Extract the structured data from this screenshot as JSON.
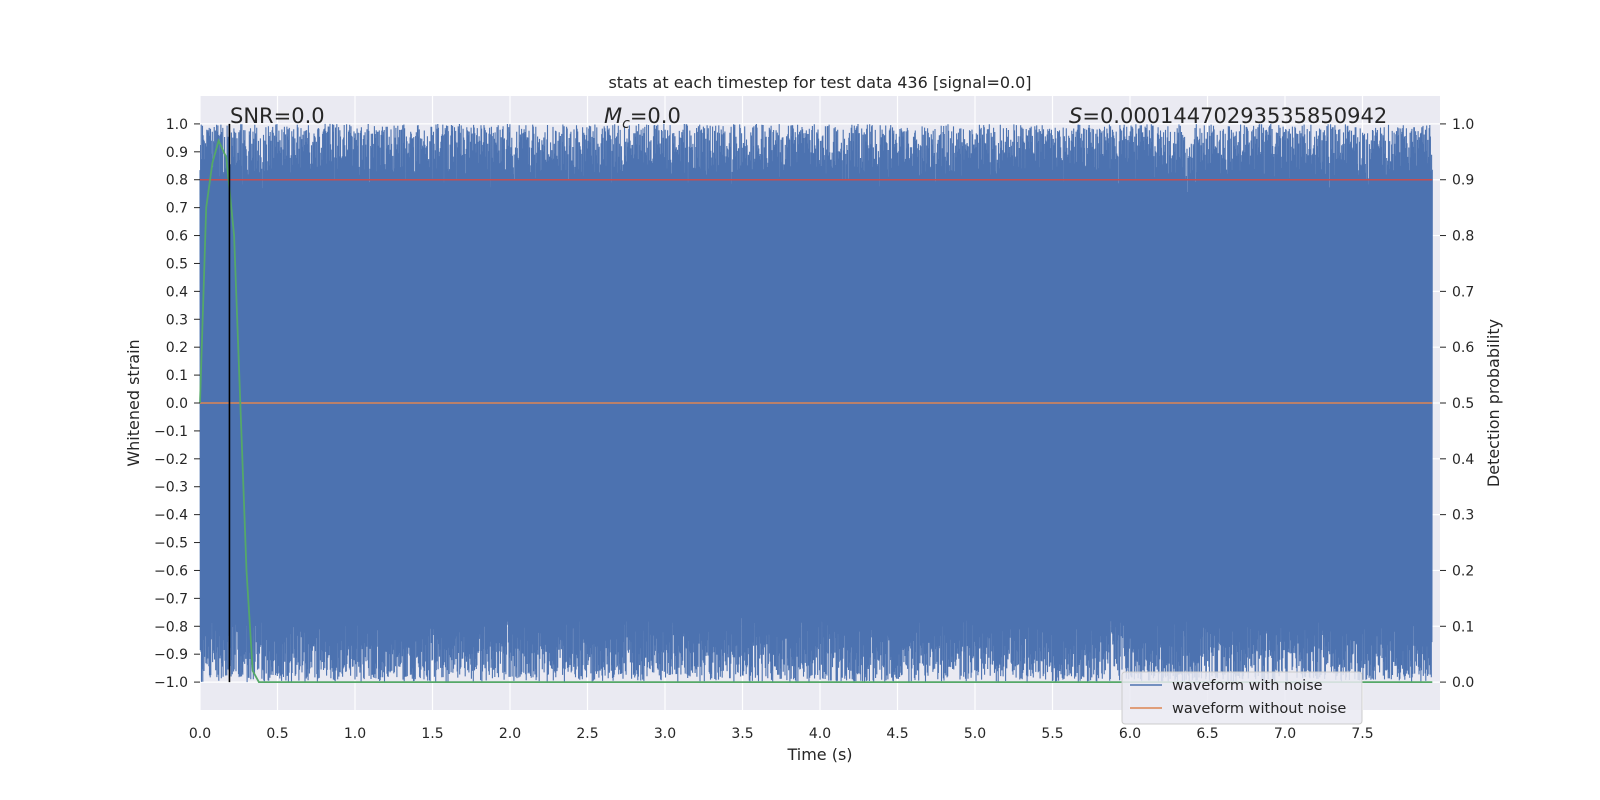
{
  "chart_data": {
    "type": "line",
    "title": "stats at each timestep for test data 436 [signal=0.0]",
    "xlabel": "Time (s)",
    "ylabel": "Whitened strain",
    "y2label": "Detection probability",
    "xlim": [
      0.0,
      8.0
    ],
    "ylim": [
      -1.1,
      1.1
    ],
    "y2lim": [
      -0.05,
      1.05
    ],
    "x_ticks": [
      "0.0",
      "0.5",
      "1.0",
      "1.5",
      "2.0",
      "2.5",
      "3.0",
      "3.5",
      "4.0",
      "4.5",
      "5.0",
      "5.5",
      "6.0",
      "6.5",
      "7.0",
      "7.5"
    ],
    "y_ticks": [
      "1.0",
      "0.9",
      "0.8",
      "0.7",
      "0.6",
      "0.5",
      "0.4",
      "0.3",
      "0.2",
      "0.1",
      "0.0",
      "−0.1",
      "−0.2",
      "−0.3",
      "−0.4",
      "−0.5",
      "−0.6",
      "−0.7",
      "−0.8",
      "−0.9",
      "−1.0"
    ],
    "y2_ticks": [
      "1.0",
      "0.9",
      "0.8",
      "0.7",
      "0.6",
      "0.5",
      "0.4",
      "0.3",
      "0.2",
      "0.1",
      "0.0"
    ],
    "grid": true,
    "legend_position": "lower-right",
    "annotations": {
      "snr_text": "SNR=0.0",
      "mc_symbol": "M",
      "mc_subscript": "c",
      "mc_text": "=0.0",
      "s_symbol": "S",
      "s_text": "=0.00014470293535850942"
    },
    "series": [
      {
        "name": "waveform with noise",
        "color": "#4c72b0",
        "kind": "noise",
        "range": [
          -1.0,
          1.0
        ]
      },
      {
        "name": "waveform without noise",
        "color": "#dd8452",
        "kind": "flat",
        "value": 0.0
      }
    ],
    "detection_probability": {
      "color": "#55a868",
      "x": [
        0.0,
        0.04,
        0.08,
        0.12,
        0.17,
        0.22,
        0.26,
        0.3,
        0.34,
        0.38,
        8.0
      ],
      "y": [
        0.5,
        0.85,
        0.93,
        0.97,
        0.94,
        0.8,
        0.5,
        0.2,
        0.02,
        0.0,
        0.0
      ]
    },
    "threshold": {
      "value": 0.9,
      "color": "#c44e52"
    },
    "peak_marker": {
      "x": 0.19,
      "color": "#000000"
    }
  }
}
